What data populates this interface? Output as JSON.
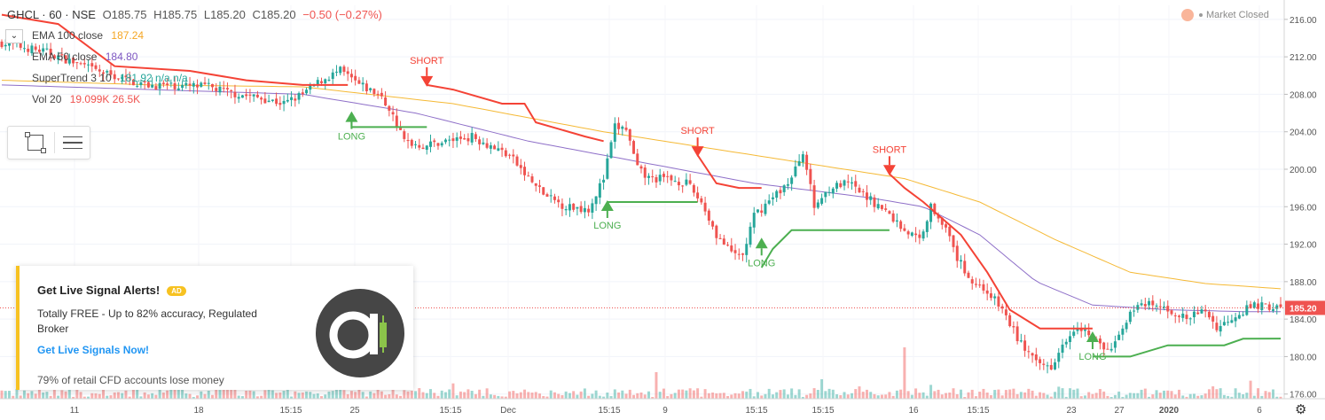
{
  "header": {
    "symbol": "GHCL · 60 · NSE",
    "open": "O185.75",
    "high": "H185.75",
    "low": "L185.20",
    "close": "C185.20",
    "change": "−0.50 (−0.27%)"
  },
  "studies": [
    {
      "name": "EMA 100 close",
      "value": "187.24",
      "color": "#f5a623"
    },
    {
      "name": "EMA 50 close",
      "value": "184.80",
      "color": "#7e57c2"
    },
    {
      "name": "SuperTrend 3 10",
      "value": "181.92 n/a n/a",
      "color": "#26a69a"
    },
    {
      "name": "Vol 20",
      "value": "19.099K 26.5K",
      "color": "#ef5350"
    }
  ],
  "market_status": "Market Closed",
  "ad": {
    "title": "Get Live Signal Alerts!",
    "badge": "AD",
    "description": "Totally FREE - Up to 82% accuracy, Regulated Broker",
    "link": "Get Live Signals Now!",
    "warning": "79% of retail CFD accounts lose money"
  },
  "colors": {
    "up": "#26a69a",
    "down": "#ef5350",
    "supertrend_up": "#4caf50",
    "supertrend_down": "#f44336",
    "ema100": "#f5b935",
    "ema50": "#8e6fc8"
  },
  "chart_data": {
    "type": "candlestick",
    "symbol": "GHCL",
    "interval": "60",
    "exchange": "NSE",
    "y_ticks": [
      "216.00",
      "212.00",
      "208.00",
      "204.00",
      "200.00",
      "196.00",
      "192.00",
      "188.00",
      "184.00",
      "180.00",
      "176.00"
    ],
    "ylim": [
      175.5,
      217.5
    ],
    "x_ticks": [
      "11",
      "18",
      "15:15",
      "25",
      "15:15",
      "Dec",
      "15:15",
      "9",
      "15:15",
      "15:15",
      "16",
      "15:15",
      "23",
      "27",
      "2020",
      "6"
    ],
    "last_price": "185.20",
    "close_path": [
      [
        0,
        213.5
      ],
      [
        12,
        212.5
      ],
      [
        25,
        210.5
      ],
      [
        38,
        209.0
      ],
      [
        55,
        208.8
      ],
      [
        60,
        208.2
      ],
      [
        70,
        207.5
      ],
      [
        75,
        207.0
      ],
      [
        80,
        208.0
      ],
      [
        85,
        209.5
      ],
      [
        90,
        210.5
      ],
      [
        95,
        209.0
      ],
      [
        100,
        208.0
      ],
      [
        103,
        206.5
      ],
      [
        107,
        203.0
      ],
      [
        112,
        202.5
      ],
      [
        118,
        203.0
      ],
      [
        125,
        203.5
      ],
      [
        130,
        202.5
      ],
      [
        135,
        201.5
      ],
      [
        140,
        199.0
      ],
      [
        145,
        197.0
      ],
      [
        150,
        196.0
      ],
      [
        156,
        195.8
      ],
      [
        160,
        199.0
      ],
      [
        163,
        204.5
      ],
      [
        166,
        204.3
      ],
      [
        169,
        200.0
      ],
      [
        172,
        199.0
      ],
      [
        177,
        199.0
      ],
      [
        182,
        198.5
      ],
      [
        186,
        196.5
      ],
      [
        190,
        193.0
      ],
      [
        194,
        191.0
      ],
      [
        197,
        190.8
      ],
      [
        200,
        195.0
      ],
      [
        205,
        197.0
      ],
      [
        210,
        199.0
      ],
      [
        213,
        202.0
      ],
      [
        216,
        196.0
      ],
      [
        220,
        198.0
      ],
      [
        225,
        198.5
      ],
      [
        230,
        197.0
      ],
      [
        235,
        195.5
      ],
      [
        240,
        193.5
      ],
      [
        244,
        192.5
      ],
      [
        247,
        196.0
      ],
      [
        250,
        194.5
      ],
      [
        254,
        190.5
      ],
      [
        258,
        188.0
      ],
      [
        262,
        187.0
      ],
      [
        266,
        185.0
      ],
      [
        270,
        182.0
      ],
      [
        275,
        179.2
      ],
      [
        279,
        179.0
      ],
      [
        282,
        181.5
      ],
      [
        286,
        183.5
      ],
      [
        290,
        182.0
      ],
      [
        294,
        180.5
      ],
      [
        297,
        182.0
      ],
      [
        300,
        185.0
      ],
      [
        305,
        185.5
      ],
      [
        310,
        185.0
      ],
      [
        315,
        184.0
      ],
      [
        320,
        185.0
      ],
      [
        323,
        183.0
      ],
      [
        328,
        184.5
      ],
      [
        333,
        185.5
      ],
      [
        340,
        185.2
      ]
    ],
    "volume_spikes": [
      [
        240,
        58
      ],
      [
        174,
        30
      ],
      [
        218,
        22
      ],
      [
        322,
        14
      ]
    ],
    "ema100": [
      [
        0,
        209.5
      ],
      [
        40,
        209.0
      ],
      [
        80,
        208.8
      ],
      [
        120,
        207.0
      ],
      [
        160,
        204.0
      ],
      [
        200,
        201.5
      ],
      [
        240,
        199.0
      ],
      [
        260,
        196.5
      ],
      [
        280,
        192.5
      ],
      [
        300,
        189.0
      ],
      [
        320,
        187.8
      ],
      [
        340,
        187.24
      ]
    ],
    "ema50": [
      [
        0,
        209.0
      ],
      [
        40,
        208.5
      ],
      [
        80,
        208.0
      ],
      [
        110,
        206.0
      ],
      [
        140,
        203.0
      ],
      [
        160,
        201.5
      ],
      [
        180,
        200.0
      ],
      [
        200,
        198.5
      ],
      [
        230,
        197.0
      ],
      [
        245,
        196.0
      ],
      [
        260,
        193.0
      ],
      [
        275,
        188.0
      ],
      [
        290,
        185.5
      ],
      [
        310,
        185.0
      ],
      [
        330,
        184.8
      ],
      [
        340,
        184.8
      ]
    ],
    "supertrend": [
      {
        "dir": "down",
        "points": [
          [
            0,
            216.5
          ],
          [
            15,
            215.5
          ],
          [
            30,
            211.0
          ],
          [
            50,
            210.5
          ],
          [
            65,
            209.5
          ],
          [
            80,
            209.0
          ],
          [
            92,
            209.0
          ]
        ]
      },
      {
        "dir": "up",
        "points": [
          [
            93,
            206.0
          ],
          [
            93,
            204.5
          ],
          [
            113,
            204.5
          ]
        ]
      },
      {
        "dir": "down",
        "points": [
          [
            113,
            209.0
          ],
          [
            120,
            208.5
          ],
          [
            133,
            207.0
          ],
          [
            139,
            207.0
          ],
          [
            142,
            205.0
          ],
          [
            155,
            203.5
          ],
          [
            160,
            203.0
          ]
        ]
      },
      {
        "dir": "up",
        "points": [
          [
            161,
            196.5
          ],
          [
            166,
            196.5
          ],
          [
            185,
            196.5
          ]
        ]
      },
      {
        "dir": "down",
        "points": [
          [
            185,
            201.5
          ],
          [
            190,
            198.5
          ],
          [
            196,
            198.0
          ],
          [
            202,
            198.0
          ]
        ]
      },
      {
        "dir": "up",
        "points": [
          [
            202,
            189.5
          ],
          [
            205,
            191.5
          ],
          [
            210,
            193.5
          ],
          [
            225,
            193.5
          ],
          [
            236,
            193.5
          ]
        ]
      },
      {
        "dir": "down",
        "points": [
          [
            236,
            199.5
          ],
          [
            240,
            198.0
          ],
          [
            245,
            196.5
          ],
          [
            255,
            193.0
          ],
          [
            262,
            189.0
          ],
          [
            268,
            185.0
          ],
          [
            276,
            183.0
          ],
          [
            290,
            183.0
          ]
        ]
      },
      {
        "dir": "up",
        "points": [
          [
            290,
            180.0
          ],
          [
            300,
            180.0
          ],
          [
            310,
            181.2
          ],
          [
            325,
            181.2
          ],
          [
            330,
            181.9
          ],
          [
            340,
            181.92
          ]
        ]
      }
    ],
    "signals": [
      {
        "type": "LONG",
        "x": 93,
        "y": 206.0
      },
      {
        "type": "SHORT",
        "x": 113,
        "y": 209.0
      },
      {
        "type": "LONG",
        "x": 161,
        "y": 196.5
      },
      {
        "type": "SHORT",
        "x": 185,
        "y": 201.5
      },
      {
        "type": "LONG",
        "x": 202,
        "y": 192.5
      },
      {
        "type": "SHORT",
        "x": 236,
        "y": 199.5
      },
      {
        "type": "LONG",
        "x": 290,
        "y": 182.5
      }
    ]
  }
}
